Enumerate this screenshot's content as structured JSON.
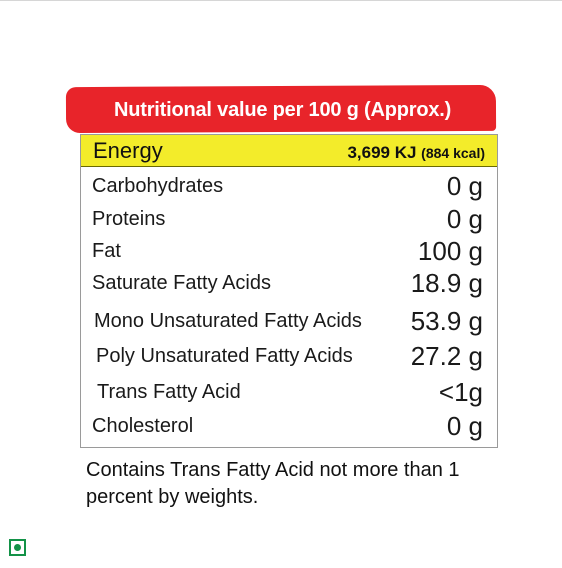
{
  "label": {
    "heading": "Nutritional value per 100 g (Approx.)",
    "energy": {
      "name": "Energy",
      "value": "3,699 KJ",
      "kcal": "(884 kcal)"
    },
    "rows": [
      {
        "name": "Carbohydrates",
        "value": "0 g"
      },
      {
        "name": "Proteins",
        "value": "0 g"
      },
      {
        "name": "Fat",
        "value": "100 g"
      },
      {
        "name": "Saturate Fatty Acids",
        "value": "18.9 g"
      },
      {
        "name": "Mono Unsaturated Fatty Acids",
        "value": "53.9 g"
      },
      {
        "name": "Poly Unsaturated Fatty Acids",
        "value": "27.2 g"
      },
      {
        "name": "Trans Fatty Acid",
        "value": "<1g"
      },
      {
        "name": "Cholesterol",
        "value": "0 g"
      }
    ]
  },
  "footnote": "Contains Trans Fatty Acid not more than 1 percent by weights.",
  "badges": {
    "veg_mark_icon": "veg-mark-icon",
    "veg_mark_color": "#139247"
  },
  "colors": {
    "banner": "#e8242a",
    "energy_row": "#f3ec2a"
  }
}
